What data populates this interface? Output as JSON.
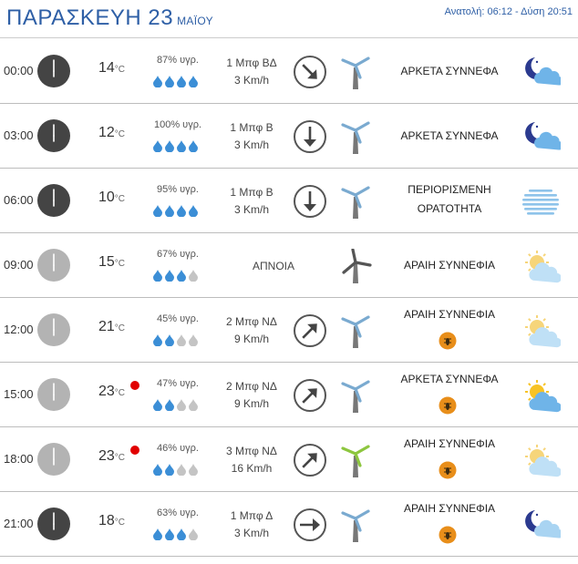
{
  "header": {
    "day": "ΠΑΡΑΣΚΕΥΗ 23",
    "month": "ΜΑΪΟΥ",
    "sun": "Ανατολή: 06:12 - Δύση 20:51"
  },
  "temp_unit": "°C",
  "rows": [
    {
      "time": "00:00",
      "night": true,
      "temp": "14",
      "alert": false,
      "humidity": "87% υγρ.",
      "drops": 4,
      "wind_force": "1 Μπφ ΒΔ",
      "wind_speed": "3 Km/h",
      "calm": "",
      "wind_dir": "se",
      "mill": "blue",
      "cond1": "ΑΡΚΕΤΑ ΣΥΝΝΕΦΑ",
      "cond2": "",
      "bug": false,
      "icon": "moon-cloud"
    },
    {
      "time": "03:00",
      "night": true,
      "temp": "12",
      "alert": false,
      "humidity": "100% υγρ.",
      "drops": 4,
      "wind_force": "1 Μπφ Β",
      "wind_speed": "3 Km/h",
      "calm": "",
      "wind_dir": "s",
      "mill": "blue",
      "cond1": "ΑΡΚΕΤΑ ΣΥΝΝΕΦΑ",
      "cond2": "",
      "bug": false,
      "icon": "moon-cloud"
    },
    {
      "time": "06:00",
      "night": true,
      "temp": "10",
      "alert": false,
      "humidity": "95% υγρ.",
      "drops": 4,
      "wind_force": "1 Μπφ Β",
      "wind_speed": "3 Km/h",
      "calm": "",
      "wind_dir": "s",
      "mill": "blue",
      "cond1": "ΠΕΡΙΟΡΙΣΜΕΝΗ",
      "cond2": "ΟΡΑΤΟΤΗΤΑ",
      "bug": false,
      "icon": "fog"
    },
    {
      "time": "09:00",
      "night": false,
      "temp": "15",
      "alert": false,
      "humidity": "67% υγρ.",
      "drops": 3,
      "wind_force": "",
      "wind_speed": "",
      "calm": "ΑΠΝΟΙΑ",
      "wind_dir": "",
      "mill": "gray",
      "cond1": "ΑΡΑΙΗ ΣΥΝΝΕΦΙΑ",
      "cond2": "",
      "bug": false,
      "icon": "sun-cloud-light"
    },
    {
      "time": "12:00",
      "night": false,
      "temp": "21",
      "alert": false,
      "humidity": "45% υγρ.",
      "drops": 2,
      "wind_force": "2 Μπφ ΝΔ",
      "wind_speed": "9 Km/h",
      "calm": "",
      "wind_dir": "ne",
      "mill": "blue",
      "cond1": "ΑΡΑΙΗ ΣΥΝΝΕΦΙΑ",
      "cond2": "",
      "bug": true,
      "icon": "sun-cloud-light"
    },
    {
      "time": "15:00",
      "night": false,
      "temp": "23",
      "alert": true,
      "humidity": "47% υγρ.",
      "drops": 2,
      "wind_force": "2 Μπφ ΝΔ",
      "wind_speed": "9 Km/h",
      "calm": "",
      "wind_dir": "ne",
      "mill": "blue",
      "cond1": "ΑΡΚΕΤΑ ΣΥΝΝΕΦΑ",
      "cond2": "",
      "bug": true,
      "icon": "sun-cloud"
    },
    {
      "time": "18:00",
      "night": false,
      "temp": "23",
      "alert": true,
      "humidity": "46% υγρ.",
      "drops": 2,
      "wind_force": "3 Μπφ ΝΔ",
      "wind_speed": "16 Km/h",
      "calm": "",
      "wind_dir": "ne",
      "mill": "green",
      "cond1": "ΑΡΑΙΗ ΣΥΝΝΕΦΙΑ",
      "cond2": "",
      "bug": true,
      "icon": "sun-cloud-light"
    },
    {
      "time": "21:00",
      "night": true,
      "temp": "18",
      "alert": false,
      "humidity": "63% υγρ.",
      "drops": 3,
      "wind_force": "1 Μπφ Δ",
      "wind_speed": "3 Km/h",
      "calm": "",
      "wind_dir": "e",
      "mill": "blue",
      "cond1": "ΑΡΑΙΗ ΣΥΝΝΕΦΙΑ",
      "cond2": "",
      "bug": true,
      "icon": "moon-cloud-light"
    }
  ],
  "colors": {
    "title": "#2e5fa6",
    "clock_night": "#444444",
    "clock_day": "#b3b3b3",
    "drop_on": "#3b8ed6",
    "drop_off": "#c4c4c4",
    "mill_blue": "#7aaad0",
    "mill_gray": "#555555",
    "mill_green": "#8dc63f",
    "alert": "#e10000",
    "bug": "#e88e1a"
  }
}
